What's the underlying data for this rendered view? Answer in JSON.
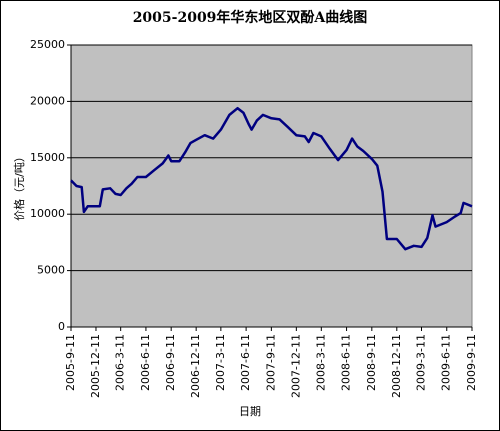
{
  "chart_data": {
    "type": "line",
    "title": "2005-2009年华东地区双酚A曲线图",
    "x_label": "日期",
    "y_label": "价格（元/吨）",
    "x": [
      "2005-9-11",
      "2005-10-1",
      "2005-10-20",
      "2005-10-28",
      "2005-11-11",
      "2005-12-11",
      "2005-12-25",
      "2006-1-5",
      "2006-2-1",
      "2006-2-20",
      "2006-3-11",
      "2006-4-1",
      "2006-4-20",
      "2006-5-11",
      "2006-6-11",
      "2006-7-11",
      "2006-8-11",
      "2006-9-1",
      "2006-9-11",
      "2006-10-11",
      "2006-11-1",
      "2006-11-20",
      "2006-12-11",
      "2007-1-11",
      "2007-2-11",
      "2007-3-11",
      "2007-4-11",
      "2007-5-11",
      "2007-6-1",
      "2007-6-20",
      "2007-7-1",
      "2007-7-20",
      "2007-8-11",
      "2007-9-11",
      "2007-10-11",
      "2007-11-11",
      "2007-12-11",
      "2008-1-11",
      "2008-1-25",
      "2008-2-11",
      "2008-3-11",
      "2008-4-11",
      "2008-5-11",
      "2008-6-11",
      "2008-7-1",
      "2008-7-20",
      "2008-8-11",
      "2008-9-11",
      "2008-10-1",
      "2008-10-20",
      "2008-11-5",
      "2008-12-11",
      "2009-1-11",
      "2009-2-11",
      "2009-3-11",
      "2009-4-1",
      "2009-4-20",
      "2009-5-1",
      "2009-6-11",
      "2009-7-11",
      "2009-8-1",
      "2009-8-11",
      "2009-9-11"
    ],
    "series": [
      {
        "name": "双酚A",
        "color": "#000080",
        "values": [
          13000,
          12500,
          12400,
          10200,
          10700,
          10700,
          10700,
          12200,
          12300,
          11800,
          11700,
          12300,
          12700,
          13300,
          13300,
          13900,
          14500,
          15200,
          14700,
          14700,
          15500,
          16300,
          16600,
          17000,
          16700,
          17500,
          18800,
          19400,
          19000,
          18000,
          17500,
          18300,
          18800,
          18500,
          18400,
          17700,
          17000,
          16900,
          16400,
          17200,
          16900,
          15800,
          14800,
          15700,
          16700,
          16000,
          15600,
          14900,
          14300,
          12000,
          7800,
          7800,
          6900,
          7200,
          7100,
          7900,
          9900,
          8900,
          9300,
          9800,
          10100,
          11000,
          10700
        ]
      }
    ],
    "ylim": [
      0,
      25000
    ],
    "yticks": [
      0,
      5000,
      10000,
      15000,
      20000,
      25000
    ],
    "xlim": [
      "2005-9-11",
      "2009-9-11"
    ],
    "xticks": [
      "2005-9-11",
      "2005-12-11",
      "2006-3-11",
      "2006-6-11",
      "2006-9-11",
      "2006-12-11",
      "2007-3-11",
      "2007-6-11",
      "2007-9-11",
      "2007-12-11",
      "2008-3-11",
      "2008-6-11",
      "2008-9-11",
      "2008-12-11",
      "2009-3-11",
      "2009-6-11",
      "2009-9-11"
    ],
    "grid": true,
    "plot_background": "#c0c0c0"
  }
}
